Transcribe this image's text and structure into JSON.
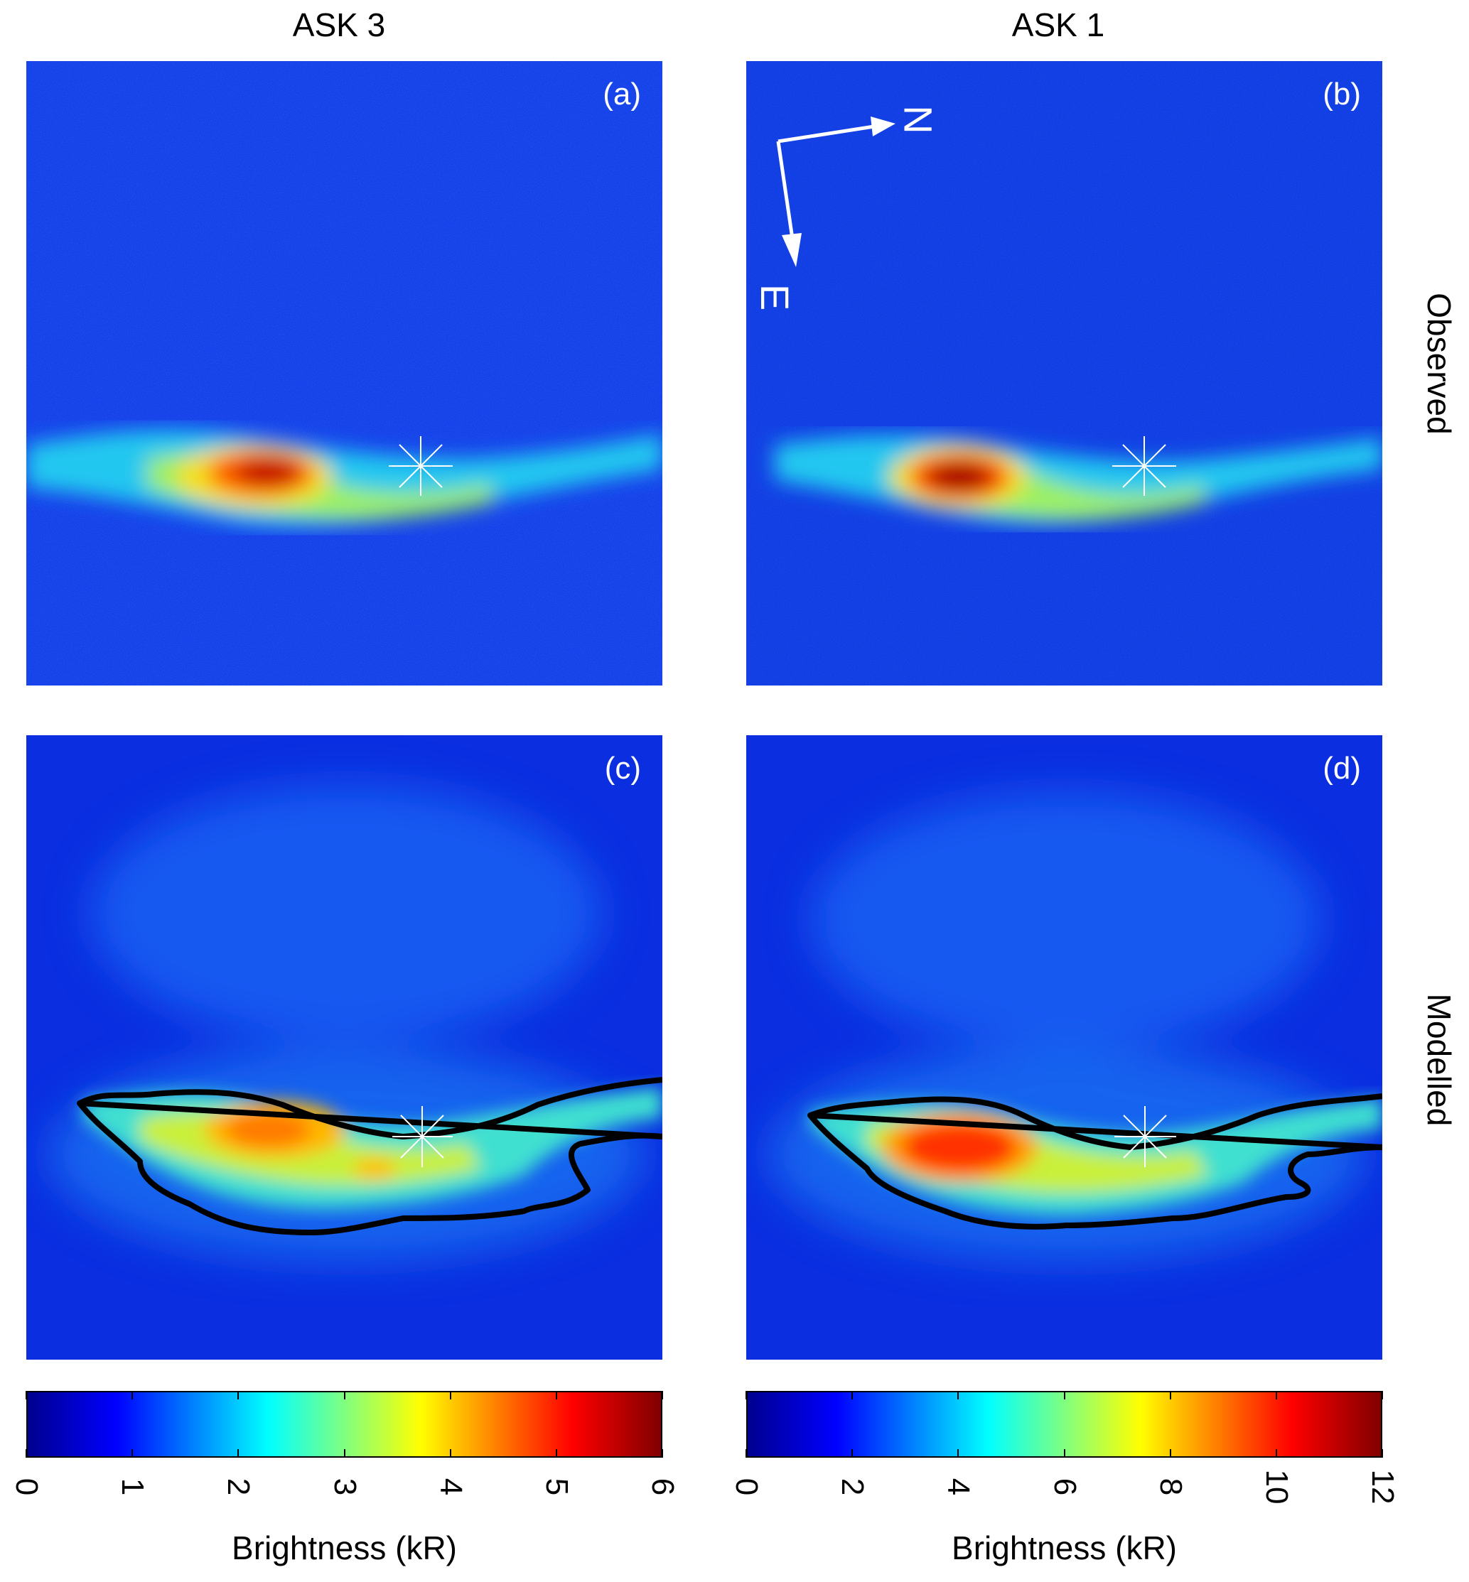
{
  "column_titles": [
    "ASK 3",
    "ASK 1"
  ],
  "row_titles": [
    "Observed",
    "Modelled"
  ],
  "compass": {
    "north": "N",
    "east": "E"
  },
  "chart_data": [
    {
      "type": "heatmap",
      "panel": "(a)",
      "row": "Observed",
      "column": "ASK 3",
      "colorbar_range": [
        0,
        6
      ]
    },
    {
      "type": "heatmap",
      "panel": "(b)",
      "row": "Observed",
      "column": "ASK 1",
      "colorbar_range": [
        0,
        12
      ]
    },
    {
      "type": "heatmap",
      "panel": "(c)",
      "row": "Modelled",
      "column": "ASK 3",
      "colorbar_range": [
        0,
        6
      ],
      "contour": true
    },
    {
      "type": "heatmap",
      "panel": "(d)",
      "row": "Modelled",
      "column": "ASK 1",
      "colorbar_range": [
        0,
        12
      ],
      "contour": true
    }
  ],
  "colorbars": [
    {
      "ticks": [
        "0",
        "1",
        "2",
        "3",
        "4",
        "5",
        "6"
      ],
      "label": "Brightness (kR)",
      "range": [
        0,
        6
      ]
    },
    {
      "ticks": [
        "0",
        "2",
        "4",
        "6",
        "8",
        "10",
        "12"
      ],
      "label": "Brightness (kR)",
      "range": [
        0,
        12
      ]
    }
  ],
  "colormap": [
    "#00008f",
    "#0000ff",
    "#00ffff",
    "#ffff00",
    "#ff0000",
    "#800000"
  ]
}
